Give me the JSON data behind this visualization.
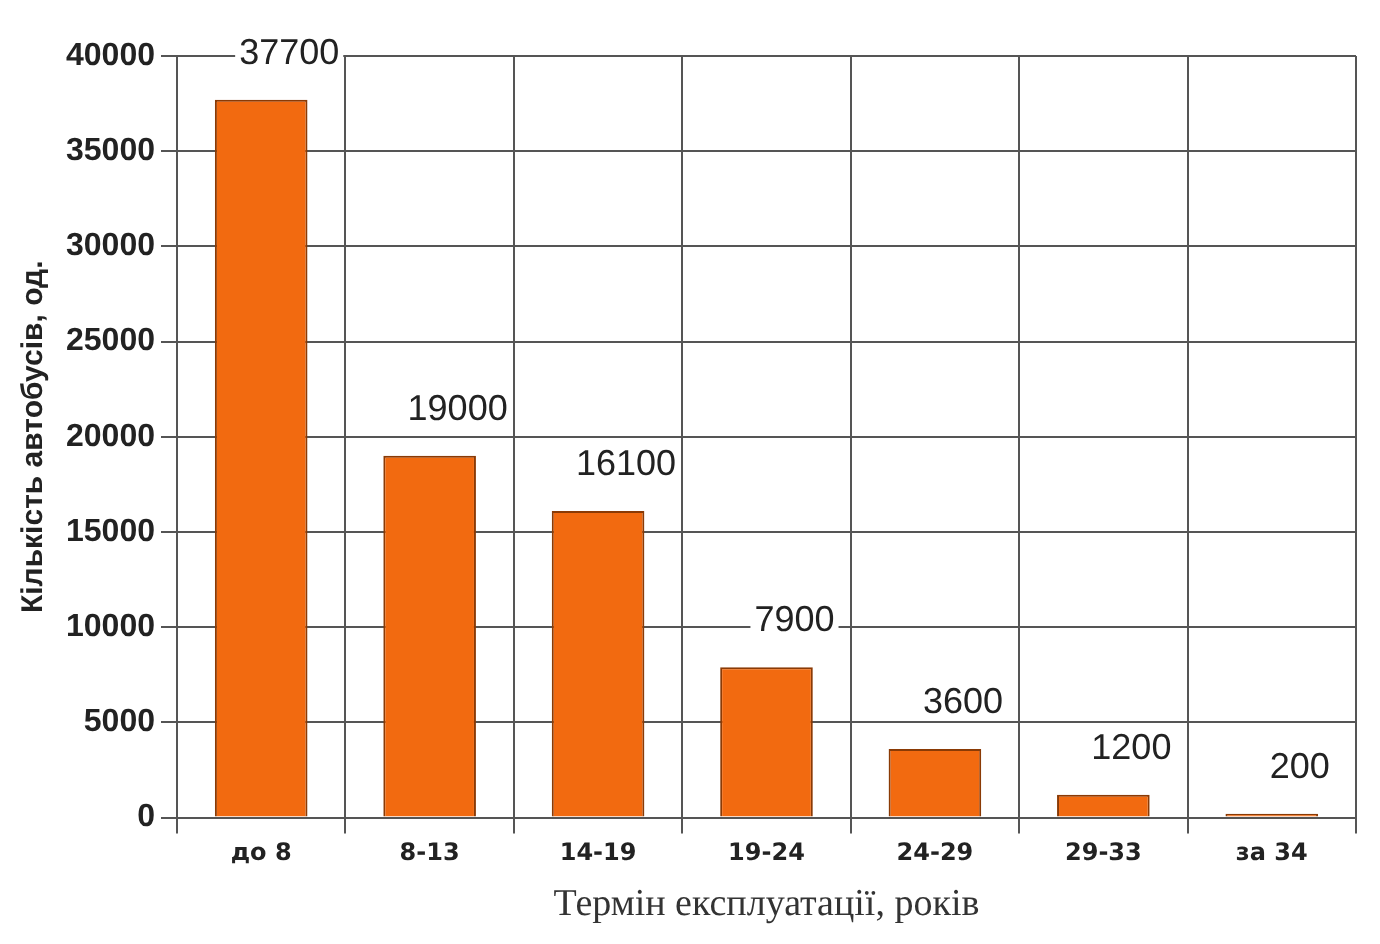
{
  "chart_data": {
    "type": "bar",
    "xlabel": "Термін експлуатації, років",
    "ylabel": "Кількість автобусів, од.",
    "categories": [
      "до 8",
      "8-13",
      "14-19",
      "19-24",
      "24-29",
      "29-33",
      "за 34"
    ],
    "values": [
      37700,
      19000,
      16100,
      7900,
      3600,
      1200,
      200
    ],
    "color": "#f26a10",
    "ylim": [
      0,
      40000
    ],
    "yticks": [
      0,
      5000,
      10000,
      15000,
      20000,
      25000,
      30000,
      35000,
      40000
    ],
    "grid": true,
    "data_labels": true
  }
}
